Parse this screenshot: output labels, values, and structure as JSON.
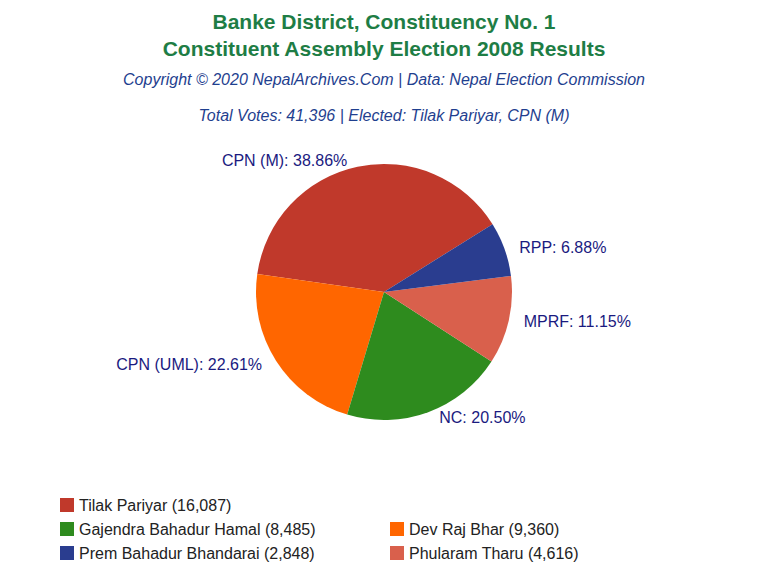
{
  "chart_data": {
    "type": "pie",
    "title": "Banke District, Constituency No. 1",
    "title_line2": "Constituent Assembly Election 2008 Results",
    "subtitle": "Copyright © 2020 NepalArchives.Com | Data: Nepal Election Commission",
    "summary": "Total Votes: 41,396 | Elected: Tilak Pariyar, CPN (M)",
    "categories": [
      "CPN (M)",
      "CPN (UML)",
      "NC",
      "MPRF",
      "RPP"
    ],
    "values": [
      38.86,
      22.61,
      20.5,
      11.15,
      6.88
    ],
    "value_labels": [
      "CPN (M): 38.86%",
      "CPN (UML): 22.61%",
      "NC: 20.50%",
      "MPRF: 11.15%",
      "RPP: 6.88%"
    ],
    "colors": [
      "#c0392b",
      "#ff6600",
      "#2e8b1e",
      "#d9604c",
      "#2a3d8f"
    ],
    "legend_labels": [
      "Tilak Pariyar (16,087)",
      "Dev Raj Bhar (9,360)",
      "Gajendra Bahadur Hamal (8,485)",
      "Phularam Tharu (4,616)",
      "Prem Bahadur Bhandarai (2,848)"
    ],
    "legend": "bottom",
    "data_labels": true
  }
}
